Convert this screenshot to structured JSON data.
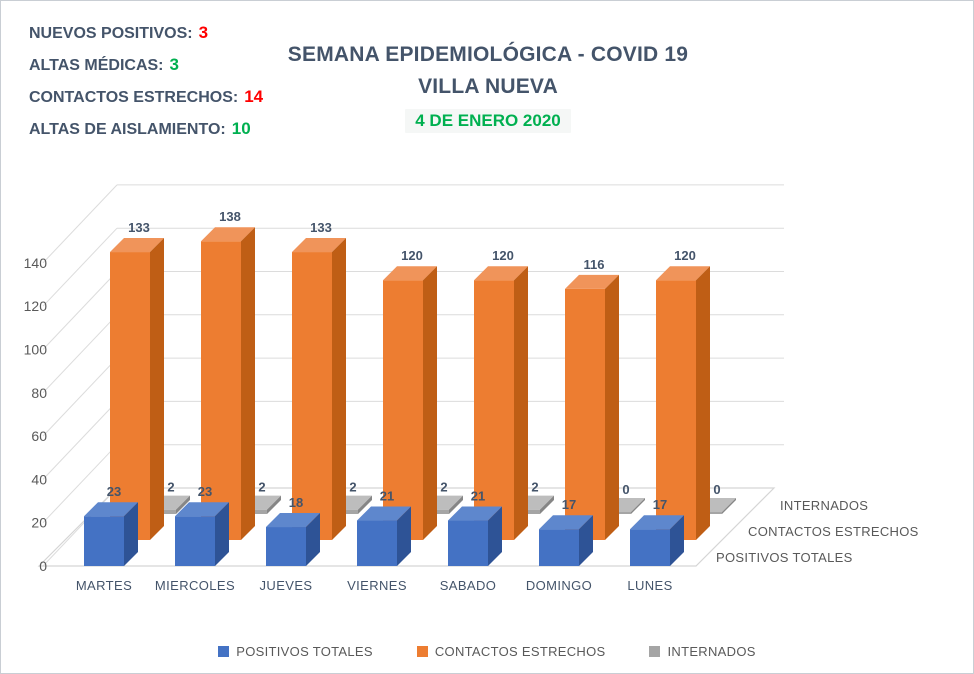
{
  "window": {
    "background": "#ffffff",
    "border_color": "#c9ced4"
  },
  "stats": {
    "label_color": "#44546a",
    "items": [
      {
        "label": "NUEVOS POSITIVOS:",
        "value": "3",
        "value_color": "#ff0000"
      },
      {
        "label": "ALTAS MÉDICAS:",
        "value": "3",
        "value_color": "#00b050"
      },
      {
        "label": "CONTACTOS ESTRECHOS:",
        "value": "14",
        "value_color": "#ff0000"
      },
      {
        "label": "ALTAS DE AISLAMIENTO:",
        "value": "10",
        "value_color": "#00b050"
      }
    ]
  },
  "header": {
    "title_line1": "SEMANA EPIDEMIOLÓGICA - COVID 19",
    "title_line2": "VILLA NUEVA",
    "date": "4 DE ENERO 2020",
    "title_color": "#44546a",
    "date_color": "#00b050"
  },
  "chart_data": {
    "type": "bar",
    "variant": "3d-clustered-by-depth",
    "title": "",
    "xlabel": "",
    "ylabel": "",
    "categories": [
      "MARTES",
      "MIERCOLES",
      "JUEVES",
      "VIERNES",
      "SABADO",
      "DOMINGO",
      "LUNES"
    ],
    "series": [
      {
        "name": "POSITIVOS TOTALES",
        "values": [
          23,
          23,
          18,
          21,
          21,
          17,
          17
        ],
        "color": "#4472c4",
        "top_color": "#5e87cd",
        "side_color": "#2e5396"
      },
      {
        "name": "CONTACTOS ESTRECHOS",
        "values": [
          133,
          138,
          133,
          120,
          120,
          116,
          120
        ],
        "color": "#ed7d31",
        "top_color": "#f0945a",
        "side_color": "#bf5e15"
      },
      {
        "name": "INTERNADOS",
        "values": [
          2,
          2,
          2,
          2,
          2,
          0,
          0
        ],
        "color": "#a5a5a5",
        "top_color": "#bdbdbd",
        "side_color": "#868686"
      }
    ],
    "ylim": [
      0,
      140
    ],
    "yticks": [
      0,
      20,
      40,
      60,
      80,
      100,
      120,
      140
    ],
    "grid": true,
    "gridline_color": "#dcdcdc",
    "floor_line_color": "#d5d5d5",
    "value_label_color": "#44546a",
    "axis_text_color": "#595959",
    "depth_axis_labels": [
      "INTERNADOS",
      "CONTACTOS ESTRECHOS",
      "POSITIVOS TOTALES"
    ],
    "legend_position": "bottom"
  },
  "legend": {
    "items": [
      {
        "label": "POSITIVOS TOTALES",
        "color": "#4472c4"
      },
      {
        "label": "CONTACTOS ESTRECHOS",
        "color": "#ed7d31"
      },
      {
        "label": "INTERNADOS",
        "color": "#a5a5a5"
      }
    ]
  }
}
